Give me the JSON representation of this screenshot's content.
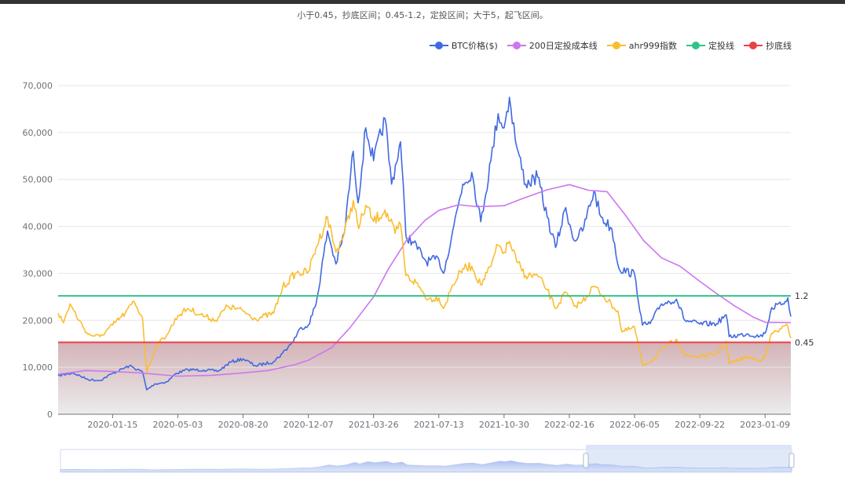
{
  "subtitle": "小于0.45，抄底区间；0.45-1.2，定投区间；大于5，起飞区间。",
  "legend": [
    {
      "label": "BTC价格($)",
      "color": "#4169e1"
    },
    {
      "label": "200日定投成本线",
      "color": "#cc77ee"
    },
    {
      "label": "ahr999指数",
      "color": "#fbbd30"
    },
    {
      "label": "定投线",
      "color": "#2ec48a"
    },
    {
      "label": "抄底线",
      "color": "#e84148"
    }
  ],
  "chart_data": {
    "type": "line",
    "title": "",
    "xlabel": "",
    "ylabel": "",
    "ylim": [
      0,
      70000
    ],
    "yticks": [
      0,
      10000,
      20000,
      30000,
      40000,
      50000,
      60000,
      70000
    ],
    "ytick_labels": [
      "0",
      "10,000",
      "20,000",
      "30,000",
      "40,000",
      "50,000",
      "60,000",
      "70,000"
    ],
    "xlim": [
      "2019-10-16",
      "2023-02-21"
    ],
    "xtick_labels": [
      "2020-01-15",
      "2020-05-03",
      "2020-08-20",
      "2020-12-07",
      "2021-03-26",
      "2021-07-13",
      "2021-10-30",
      "2022-02-16",
      "2022-06-05",
      "2022-09-22",
      "2023-01-09"
    ],
    "grid": true,
    "legend_position": "top-right",
    "threshold_lines": [
      {
        "name": "定投线",
        "label": "1.2",
        "value": 25200,
        "color": "#2ec48a"
      },
      {
        "name": "抄底线",
        "label": "0.45",
        "value": 15300,
        "color": "#e84148"
      }
    ],
    "series": [
      {
        "name": "BTC价格($)",
        "color": "#4169e1",
        "points": [
          [
            "2019-10-16",
            8200
          ],
          [
            "2019-11-10",
            8800
          ],
          [
            "2019-12-05",
            7400
          ],
          [
            "2019-12-25",
            7200
          ],
          [
            "2020-01-15",
            8700
          ],
          [
            "2020-02-12",
            10300
          ],
          [
            "2020-03-05",
            9000
          ],
          [
            "2020-03-12",
            5200
          ],
          [
            "2020-03-25",
            6400
          ],
          [
            "2020-04-15",
            6900
          ],
          [
            "2020-04-30",
            8700
          ],
          [
            "2020-05-20",
            9500
          ],
          [
            "2020-06-15",
            9400
          ],
          [
            "2020-07-10",
            9200
          ],
          [
            "2020-07-30",
            11100
          ],
          [
            "2020-08-20",
            11800
          ],
          [
            "2020-09-10",
            10300
          ],
          [
            "2020-10-10",
            11200
          ],
          [
            "2020-10-25",
            13000
          ],
          [
            "2020-11-10",
            15300
          ],
          [
            "2020-11-25",
            18500
          ],
          [
            "2020-12-07",
            19000
          ],
          [
            "2020-12-20",
            23500
          ],
          [
            "2021-01-08",
            39000
          ],
          [
            "2021-01-22",
            32000
          ],
          [
            "2021-02-05",
            38500
          ],
          [
            "2021-02-20",
            56000
          ],
          [
            "2021-02-28",
            45000
          ],
          [
            "2021-03-13",
            61000
          ],
          [
            "2021-03-26",
            54000
          ],
          [
            "2021-04-14",
            63000
          ],
          [
            "2021-04-25",
            49000
          ],
          [
            "2021-05-10",
            58000
          ],
          [
            "2021-05-19",
            38000
          ],
          [
            "2021-06-01",
            36500
          ],
          [
            "2021-06-22",
            32500
          ],
          [
            "2021-07-13",
            33000
          ],
          [
            "2021-07-21",
            30000
          ],
          [
            "2021-08-05",
            39000
          ],
          [
            "2021-08-22",
            49000
          ],
          [
            "2021-09-06",
            51500
          ],
          [
            "2021-09-21",
            41000
          ],
          [
            "2021-10-08",
            54000
          ],
          [
            "2021-10-20",
            64000
          ],
          [
            "2021-10-30",
            61000
          ],
          [
            "2021-11-08",
            67500
          ],
          [
            "2021-11-20",
            57000
          ],
          [
            "2021-12-05",
            49000
          ],
          [
            "2021-12-25",
            50500
          ],
          [
            "2022-01-10",
            42000
          ],
          [
            "2022-01-24",
            35500
          ],
          [
            "2022-02-10",
            44000
          ],
          [
            "2022-02-24",
            37000
          ],
          [
            "2022-03-10",
            39000
          ],
          [
            "2022-03-29",
            47500
          ],
          [
            "2022-04-10",
            42000
          ],
          [
            "2022-04-28",
            39500
          ],
          [
            "2022-05-10",
            31000
          ],
          [
            "2022-06-05",
            29800
          ],
          [
            "2022-06-18",
            19000
          ],
          [
            "2022-07-01",
            19300
          ],
          [
            "2022-07-20",
            23500
          ],
          [
            "2022-08-14",
            24500
          ],
          [
            "2022-08-28",
            20000
          ],
          [
            "2022-09-22",
            19200
          ],
          [
            "2022-10-20",
            19300
          ],
          [
            "2022-11-05",
            21200
          ],
          [
            "2022-11-10",
            16500
          ],
          [
            "2022-12-10",
            17100
          ],
          [
            "2022-12-31",
            16600
          ],
          [
            "2023-01-09",
            17200
          ],
          [
            "2023-01-20",
            22700
          ],
          [
            "2023-02-05",
            23300
          ],
          [
            "2023-02-16",
            24800
          ],
          [
            "2023-02-21",
            20800
          ]
        ]
      },
      {
        "name": "200日定投成本线",
        "color": "#cc77ee",
        "points": [
          [
            "2019-10-16",
            8500
          ],
          [
            "2019-12-01",
            9300
          ],
          [
            "2020-01-15",
            9100
          ],
          [
            "2020-03-01",
            8800
          ],
          [
            "2020-05-03",
            8100
          ],
          [
            "2020-07-01",
            8300
          ],
          [
            "2020-08-20",
            8800
          ],
          [
            "2020-10-01",
            9300
          ],
          [
            "2020-11-15",
            10600
          ],
          [
            "2020-12-07",
            11500
          ],
          [
            "2021-01-15",
            14200
          ],
          [
            "2021-02-15",
            18500
          ],
          [
            "2021-03-26",
            25000
          ],
          [
            "2021-04-20",
            31000
          ],
          [
            "2021-05-20",
            37000
          ],
          [
            "2021-06-20",
            41300
          ],
          [
            "2021-07-13",
            43400
          ],
          [
            "2021-08-15",
            44600
          ],
          [
            "2021-09-15",
            44200
          ],
          [
            "2021-10-30",
            44400
          ],
          [
            "2021-12-01",
            46000
          ],
          [
            "2022-01-10",
            47800
          ],
          [
            "2022-02-16",
            48900
          ],
          [
            "2022-03-20",
            47700
          ],
          [
            "2022-04-20",
            47400
          ],
          [
            "2022-05-20",
            42500
          ],
          [
            "2022-06-20",
            37000
          ],
          [
            "2022-07-20",
            33300
          ],
          [
            "2022-08-20",
            31500
          ],
          [
            "2022-09-22",
            28300
          ],
          [
            "2022-10-20",
            25700
          ],
          [
            "2022-11-20",
            23000
          ],
          [
            "2022-12-20",
            20700
          ],
          [
            "2023-01-09",
            19600
          ],
          [
            "2023-02-21",
            19500
          ]
        ]
      },
      {
        "name": "ahr999指数",
        "color": "#fbbd30",
        "points": [
          [
            "2019-10-16",
            21500
          ],
          [
            "2019-10-25",
            19500
          ],
          [
            "2019-11-05",
            23500
          ],
          [
            "2019-11-20",
            20000
          ],
          [
            "2019-12-05",
            17000
          ],
          [
            "2019-12-25",
            16500
          ],
          [
            "2020-01-15",
            19000
          ],
          [
            "2020-02-05",
            21500
          ],
          [
            "2020-02-20",
            24000
          ],
          [
            "2020-03-05",
            20500
          ],
          [
            "2020-03-12",
            9000
          ],
          [
            "2020-03-28",
            14500
          ],
          [
            "2020-04-15",
            17000
          ],
          [
            "2020-05-03",
            21000
          ],
          [
            "2020-05-20",
            22500
          ],
          [
            "2020-06-10",
            21200
          ],
          [
            "2020-07-05",
            20000
          ],
          [
            "2020-07-25",
            23000
          ],
          [
            "2020-08-20",
            22000
          ],
          [
            "2020-09-10",
            20300
          ],
          [
            "2020-10-10",
            21500
          ],
          [
            "2020-10-25",
            27000
          ],
          [
            "2020-11-15",
            30000
          ],
          [
            "2020-12-07",
            30300
          ],
          [
            "2020-12-20",
            35500
          ],
          [
            "2021-01-08",
            42000
          ],
          [
            "2021-01-22",
            34500
          ],
          [
            "2021-02-05",
            38500
          ],
          [
            "2021-02-20",
            45500
          ],
          [
            "2021-03-01",
            39500
          ],
          [
            "2021-03-13",
            44500
          ],
          [
            "2021-03-26",
            41000
          ],
          [
            "2021-04-14",
            43500
          ],
          [
            "2021-05-01",
            38500
          ],
          [
            "2021-05-10",
            40500
          ],
          [
            "2021-05-19",
            29500
          ],
          [
            "2021-06-05",
            28000
          ],
          [
            "2021-06-25",
            24500
          ],
          [
            "2021-07-13",
            24800
          ],
          [
            "2021-07-21",
            22500
          ],
          [
            "2021-08-05",
            27500
          ],
          [
            "2021-08-22",
            31000
          ],
          [
            "2021-09-06",
            31500
          ],
          [
            "2021-09-21",
            27500
          ],
          [
            "2021-10-08",
            31500
          ],
          [
            "2021-10-20",
            36000
          ],
          [
            "2021-10-30",
            34500
          ],
          [
            "2021-11-08",
            36800
          ],
          [
            "2021-11-20",
            32500
          ],
          [
            "2021-12-05",
            29500
          ],
          [
            "2021-12-25",
            29500
          ],
          [
            "2022-01-10",
            26500
          ],
          [
            "2022-01-24",
            22500
          ],
          [
            "2022-02-10",
            26000
          ],
          [
            "2022-02-24",
            23000
          ],
          [
            "2022-03-10",
            24000
          ],
          [
            "2022-03-29",
            27300
          ],
          [
            "2022-04-15",
            25000
          ],
          [
            "2022-05-08",
            22000
          ],
          [
            "2022-05-15",
            17500
          ],
          [
            "2022-06-05",
            18500
          ],
          [
            "2022-06-18",
            10500
          ],
          [
            "2022-07-05",
            11500
          ],
          [
            "2022-07-25",
            14300
          ],
          [
            "2022-08-14",
            16000
          ],
          [
            "2022-08-28",
            12500
          ],
          [
            "2022-09-22",
            12300
          ],
          [
            "2022-10-20",
            12800
          ],
          [
            "2022-11-05",
            15500
          ],
          [
            "2022-11-10",
            10800
          ],
          [
            "2022-12-10",
            12200
          ],
          [
            "2022-12-31",
            11500
          ],
          [
            "2023-01-09",
            12200
          ],
          [
            "2023-01-20",
            17200
          ],
          [
            "2023-02-05",
            18200
          ],
          [
            "2023-02-16",
            18800
          ],
          [
            "2023-02-21",
            16200
          ]
        ]
      }
    ]
  }
}
